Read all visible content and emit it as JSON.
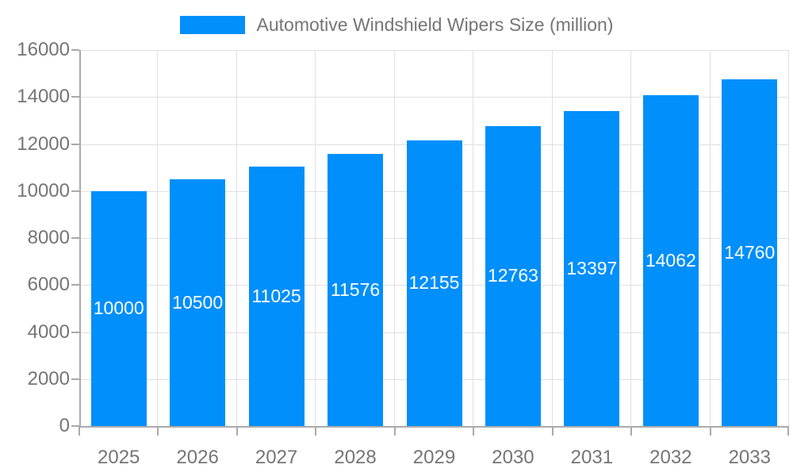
{
  "legend": {
    "label": "Automotive Windshield Wipers Size (million)"
  },
  "chart_data": {
    "type": "bar",
    "title": "Automotive Windshield Wipers Size (million)",
    "categories": [
      "2025",
      "2026",
      "2027",
      "2028",
      "2029",
      "2030",
      "2031",
      "2032",
      "2033"
    ],
    "series": [
      {
        "name": "Automotive Windshield Wipers Size (million)",
        "values": [
          10000,
          10500,
          11025,
          11576,
          12155,
          12763,
          13397,
          14062,
          14760
        ]
      }
    ],
    "value_labels": [
      "10000",
      "10500",
      "11025",
      "11576",
      "12155",
      "12763",
      "13397",
      "14062",
      "14760"
    ],
    "xlabel": "",
    "ylabel": "",
    "ylim": [
      0,
      16000
    ],
    "yticks": [
      0,
      2000,
      4000,
      6000,
      8000,
      10000,
      12000,
      14000,
      16000
    ],
    "grid": true,
    "legend_position": "top"
  },
  "colors": {
    "bar": "#008FFB",
    "grid": "#e0e0e0",
    "axis": "#aaaaaa",
    "text": "#757575",
    "value_label": "#ffffff",
    "background": "#ffffff"
  }
}
